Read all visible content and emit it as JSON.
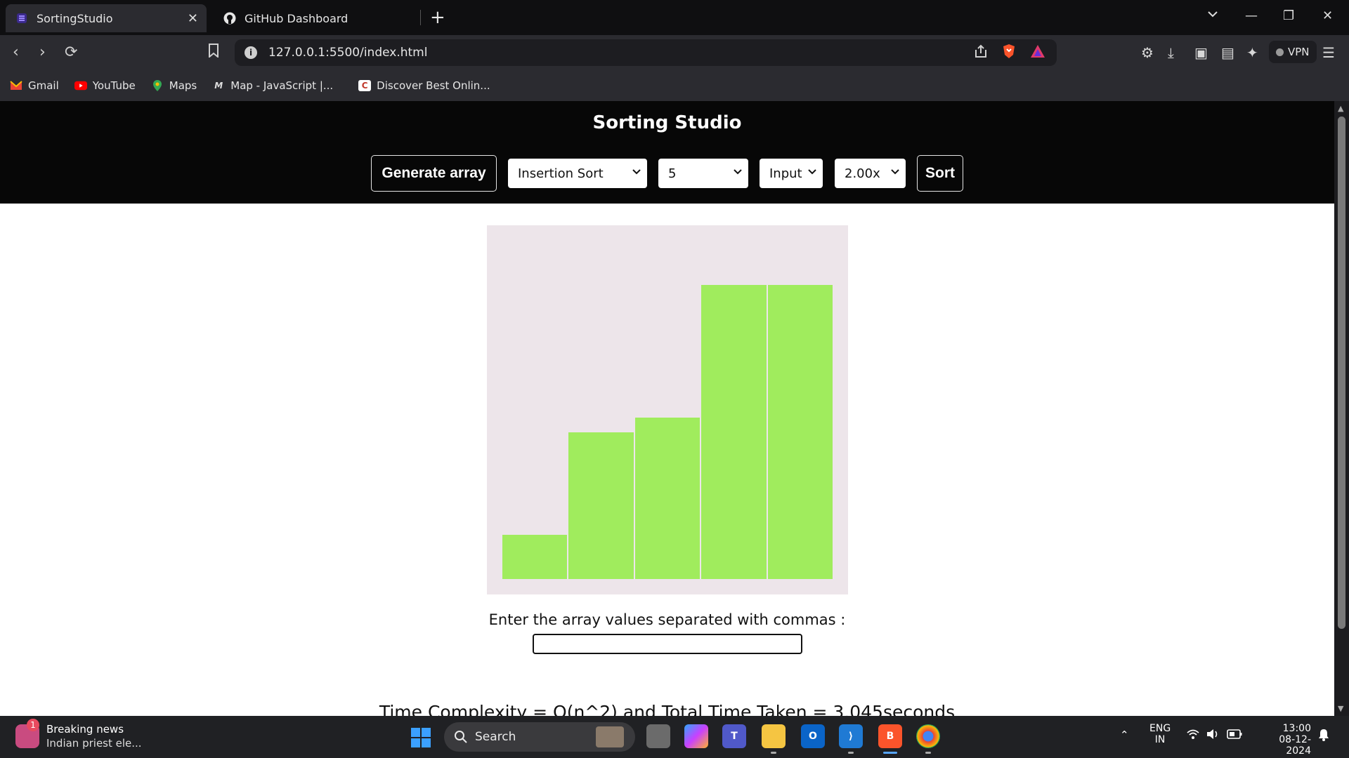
{
  "browser": {
    "tabs": [
      {
        "title": "SortingStudio",
        "active": true
      },
      {
        "title": "GitHub Dashboard",
        "active": false
      }
    ],
    "address": "127.0.0.1:5500/index.html",
    "vpn_label": "VPN",
    "bookmarks": [
      {
        "label": "Gmail",
        "icon": "gmail-icon"
      },
      {
        "label": "YouTube",
        "icon": "youtube-icon"
      },
      {
        "label": "Maps",
        "icon": "maps-icon"
      },
      {
        "label": "Map - JavaScript |...",
        "icon": "mdn-icon"
      },
      {
        "label": "Discover Best Onlin...",
        "icon": "site-icon"
      }
    ]
  },
  "app": {
    "title": "Sorting Studio",
    "generate_label": "Generate array",
    "algorithm": "Insertion Sort",
    "size": "5",
    "mode": "Input",
    "speed": "2.00x",
    "sort_label": "Sort",
    "array_values": [
      3,
      10,
      11,
      20,
      20
    ],
    "array_max": 20,
    "prompt": "Enter the array values separated with commas :",
    "input_value": "",
    "complexity_text": "Time Complexity = O(n^2) and Total Time Taken = 3.045seconds"
  },
  "colors": {
    "bar": "#a0ec5d",
    "viz_bg": "#ede5ea",
    "header_bg": "#070707"
  },
  "taskbar": {
    "news_title": "Breaking news",
    "news_sub": "Indian priest ele...",
    "news_badge": "1",
    "search_label": "Search",
    "lang_1": "ENG",
    "lang_2": "IN",
    "time": "13:00",
    "date": "08-12-2024"
  }
}
